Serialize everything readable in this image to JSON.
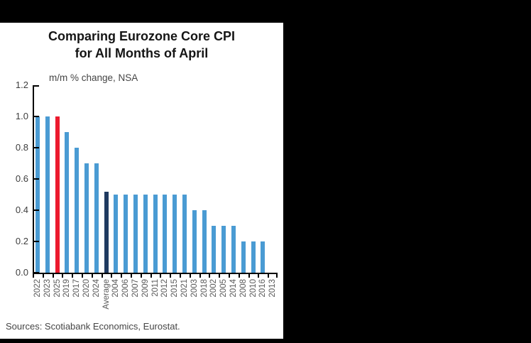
{
  "frame": {
    "background": "#000000",
    "panel_background": "#ffffff"
  },
  "header": {
    "title_line1": "Comparing Eurozone Core CPI",
    "title_line2": "for All Months of April"
  },
  "chart_data": {
    "type": "bar",
    "title": "Comparing Eurozone Core CPI for All Months of April",
    "subtitle": "m/m % change, NSA",
    "categories": [
      "2022",
      "2023",
      "2025",
      "2019",
      "2017",
      "2020",
      "2024",
      "Average",
      "2004",
      "2006",
      "2007",
      "2009",
      "2011",
      "2012",
      "2015",
      "2021",
      "2003",
      "2018",
      "2002",
      "2005",
      "2014",
      "2008",
      "2010",
      "2016",
      "2013"
    ],
    "values": [
      1.0,
      1.0,
      1.0,
      0.9,
      0.8,
      0.7,
      0.7,
      0.52,
      0.5,
      0.5,
      0.5,
      0.5,
      0.5,
      0.5,
      0.5,
      0.5,
      0.4,
      0.4,
      0.3,
      0.3,
      0.3,
      0.2,
      0.2,
      0.2,
      0.0
    ],
    "default_bar_color": "#4a9bd3",
    "color_overrides": {
      "2": "#ec1a2e",
      "7": "#1f3a60"
    },
    "ylim": [
      0,
      1.2
    ],
    "ytick_labels": [
      "1.2",
      "1.0",
      "0.8",
      "0.6",
      "0.4",
      "0.2",
      "0.0"
    ],
    "grid": false,
    "legend": null,
    "x_labels_rotated_degrees": -90
  },
  "footer": {
    "sources": "Sources: Scotiabank Economics, Eurostat."
  }
}
